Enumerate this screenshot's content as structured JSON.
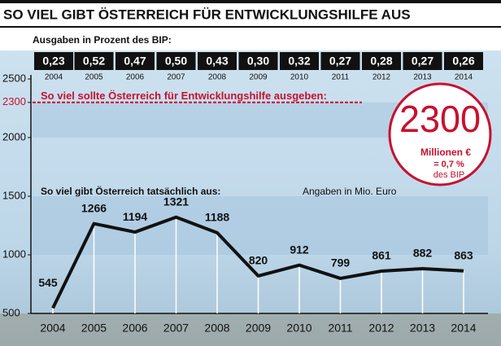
{
  "chart_data": {
    "type": "line",
    "title": "SO VIEL GIBT ÖSTERREICH FÜR ENTWICKLUNGSHILFE AUS",
    "subtitle": "Ausgaben in Prozent des BIP:",
    "categories": [
      "2004",
      "2005",
      "2006",
      "2007",
      "2008",
      "2009",
      "2010",
      "2011",
      "2012",
      "2013",
      "2014"
    ],
    "values": [
      545,
      1266,
      1194,
      1321,
      1188,
      820,
      912,
      799,
      861,
      882,
      863
    ],
    "color": "#111111",
    "gdp_share": {
      "values": [
        0.23,
        0.52,
        0.47,
        0.5,
        0.43,
        0.3,
        0.32,
        0.27,
        0.28,
        0.27,
        0.26
      ],
      "value_labels": [
        "0,23",
        "0,52",
        "0,47",
        "0,50",
        "0,43",
        "0,30",
        "0,32",
        "0,27",
        "0,28",
        "0,27",
        "0,26"
      ]
    },
    "ylim": [
      500,
      2500
    ],
    "yticks": [
      500,
      1000,
      1500,
      2000,
      2300,
      2500
    ],
    "series_label": "So viel gibt Österreich tatsächlich aus:",
    "unit_note": "Angaben in Mio. Euro",
    "target": {
      "value": 2300,
      "label": "So viel sollte Österreich für Entwicklungshilfe ausgeben:",
      "color": "#c8102e",
      "unit": "Millionen €",
      "share": "= 0,7 %",
      "share_note": "des BIP"
    }
  }
}
